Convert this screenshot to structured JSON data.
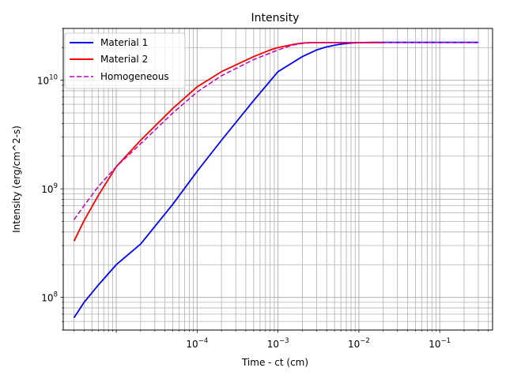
{
  "chart_data": {
    "type": "line",
    "title": "Intensity",
    "xlabel": "Time - ct (cm)",
    "ylabel": "Intensity (erg/cm^2-s)",
    "xscale": "log",
    "yscale": "log",
    "xlim": [
      2.21e-06,
      0.45
    ],
    "ylim": [
      50000000,
      30000000000
    ],
    "x_ticks": [
      {
        "value": 0.0001,
        "base": "10",
        "exp": "−4"
      },
      {
        "value": 0.001,
        "base": "10",
        "exp": "−3"
      },
      {
        "value": 0.01,
        "base": "10",
        "exp": "−2"
      },
      {
        "value": 0.1,
        "base": "10",
        "exp": "−1"
      }
    ],
    "y_ticks": [
      {
        "value": 100000000,
        "base": "10",
        "exp": "8"
      },
      {
        "value": 1000000000,
        "base": "10",
        "exp": "9"
      },
      {
        "value": 10000000000,
        "base": "10",
        "exp": "10"
      }
    ],
    "grid": true,
    "legend_position": "top-left",
    "series": [
      {
        "name": "Material 1",
        "color": "#0000ff",
        "style": "solid",
        "x": [
          3e-06,
          4e-06,
          6e-06,
          1e-05,
          2e-05,
          5e-05,
          0.0001,
          0.0002,
          0.0005,
          0.001,
          0.002,
          0.003,
          0.004,
          0.005,
          0.006,
          0.008,
          0.01,
          0.015,
          0.02,
          0.05,
          0.1,
          0.3
        ],
        "y": [
          65000000,
          90000000,
          130000000,
          200000000,
          310000000,
          720000000,
          1450000000,
          2800000000,
          6500000000,
          12000000000,
          16500000000,
          19000000000,
          20300000000,
          21000000000,
          21500000000,
          22000000000,
          22200000000,
          22300000000,
          22300000000,
          22300000000,
          22300000000,
          22300000000
        ]
      },
      {
        "name": "Material 2",
        "color": "#ff0000",
        "style": "solid",
        "x": [
          3e-06,
          4e-06,
          6e-06,
          1e-05,
          2e-05,
          5e-05,
          0.0001,
          0.0002,
          0.0005,
          0.0008,
          0.001,
          0.0015,
          0.002,
          0.0025,
          0.003,
          0.005,
          0.01,
          0.02
        ],
        "y": [
          330000000,
          510000000,
          870000000,
          1600000000,
          2800000000,
          5500000000,
          8700000000,
          12000000000,
          16500000000,
          19000000000,
          20000000000,
          21300000000,
          22000000000,
          22200000000,
          22200000000,
          22200000000,
          22200000000,
          22200000000
        ]
      },
      {
        "name": "Homogeneous",
        "color": "#bf00bf",
        "style": "dashed",
        "x": [
          3e-06,
          4e-06,
          6e-06,
          1e-05,
          2e-05,
          5e-05,
          0.0001,
          0.0002,
          0.0005,
          0.001,
          0.0015,
          0.002,
          0.0025,
          0.003,
          0.005,
          0.01,
          0.1,
          0.3
        ],
        "y": [
          520000000,
          700000000,
          1050000000,
          1600000000,
          2600000000,
          5000000000,
          7800000000,
          11000000000,
          15500000000,
          19000000000,
          21000000000,
          21800000000,
          22100000000,
          22200000000,
          22300000000,
          22300000000,
          22300000000,
          22300000000
        ]
      }
    ]
  }
}
